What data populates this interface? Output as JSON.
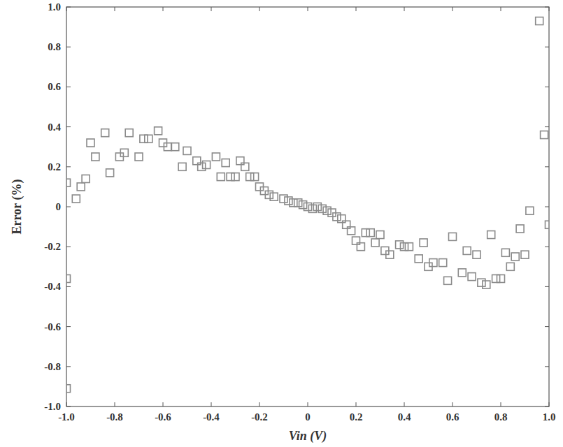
{
  "chart_data": {
    "type": "scatter",
    "x_label": "Vin (V)",
    "y_label": "Error (%)",
    "color": "#8a8a8a",
    "marker": "square",
    "grid": false,
    "xlim": [
      -1.0,
      1.0
    ],
    "ylim": [
      -1.0,
      1.0
    ],
    "xticks": [
      {
        "value": -1.0,
        "label": "-1.0"
      },
      -0.8,
      -0.6,
      -0.4,
      -0.2,
      0,
      0.2,
      0.4,
      0.6,
      0.8,
      {
        "value": 1.0,
        "label": "1.0"
      }
    ],
    "yticks": [
      {
        "value": -1.0,
        "label": "-1.0"
      },
      -0.8,
      -0.6,
      -0.4,
      -0.2,
      0,
      0.2,
      0.4,
      0.6,
      0.8,
      {
        "value": 1.0,
        "label": "1.0"
      }
    ],
    "x": [
      -1.0,
      -1.0,
      -1.0,
      -0.96,
      -0.94,
      -0.92,
      -0.9,
      -0.88,
      -0.84,
      -0.82,
      -0.78,
      -0.76,
      -0.74,
      -0.7,
      -0.68,
      -0.66,
      -0.62,
      -0.6,
      -0.58,
      -0.55,
      -0.52,
      -0.5,
      -0.46,
      -0.44,
      -0.42,
      -0.38,
      -0.36,
      -0.34,
      -0.32,
      -0.3,
      -0.28,
      -0.26,
      -0.24,
      -0.22,
      -0.2,
      -0.18,
      -0.16,
      -0.14,
      -0.1,
      -0.08,
      -0.06,
      -0.04,
      -0.02,
      0,
      0.02,
      0.04,
      0.06,
      0.08,
      0.1,
      0.12,
      0.14,
      0.16,
      0.18,
      0.2,
      0.22,
      0.24,
      0.26,
      0.28,
      0.3,
      0.32,
      0.34,
      0.38,
      0.4,
      0.42,
      0.46,
      0.48,
      0.5,
      0.52,
      0.56,
      0.58,
      0.6,
      0.64,
      0.66,
      0.68,
      0.7,
      0.72,
      0.74,
      0.76,
      0.78,
      0.8,
      0.82,
      0.84,
      0.86,
      0.88,
      0.9,
      0.92,
      0.96,
      0.98,
      1.0
    ],
    "values": [
      0.12,
      -0.36,
      -0.91,
      0.04,
      0.1,
      0.14,
      0.32,
      0.25,
      0.37,
      0.17,
      0.25,
      0.27,
      0.37,
      0.25,
      0.34,
      0.34,
      0.38,
      0.32,
      0.3,
      0.3,
      0.2,
      0.28,
      0.23,
      0.2,
      0.21,
      0.25,
      0.15,
      0.22,
      0.15,
      0.15,
      0.23,
      0.2,
      0.15,
      0.15,
      0.1,
      0.08,
      0.06,
      0.05,
      0.04,
      0.03,
      0.02,
      0.02,
      0.01,
      0.0,
      -0.01,
      0.0,
      -0.01,
      -0.02,
      -0.03,
      -0.05,
      -0.06,
      -0.09,
      -0.12,
      -0.17,
      -0.2,
      -0.13,
      -0.13,
      -0.18,
      -0.14,
      -0.22,
      -0.24,
      -0.19,
      -0.2,
      -0.2,
      -0.26,
      -0.18,
      -0.3,
      -0.28,
      -0.28,
      -0.37,
      -0.15,
      -0.33,
      -0.22,
      -0.35,
      -0.24,
      -0.38,
      -0.39,
      -0.14,
      -0.36,
      -0.36,
      -0.23,
      -0.3,
      -0.25,
      -0.11,
      -0.24,
      -0.02,
      0.93,
      0.36,
      -0.09
    ]
  }
}
